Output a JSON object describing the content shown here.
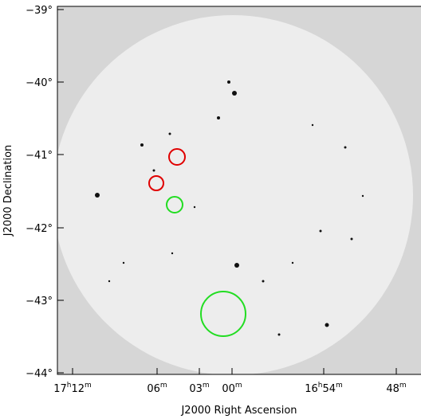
{
  "axes": {
    "x_label": "J2000 Right Ascension",
    "y_label": "J2000 Declination",
    "x_ticks": [
      [
        "17",
        "h",
        "12",
        "m"
      ],
      [
        "06",
        "m"
      ],
      [
        "03",
        "m"
      ],
      [
        "00",
        "m"
      ],
      [
        "16",
        "h",
        "54",
        "m"
      ],
      [
        "48",
        "m"
      ]
    ],
    "y_ticks": [
      "−39°",
      "−40°",
      "−41°",
      "−42°",
      "−43°",
      "−44°"
    ]
  }
}
